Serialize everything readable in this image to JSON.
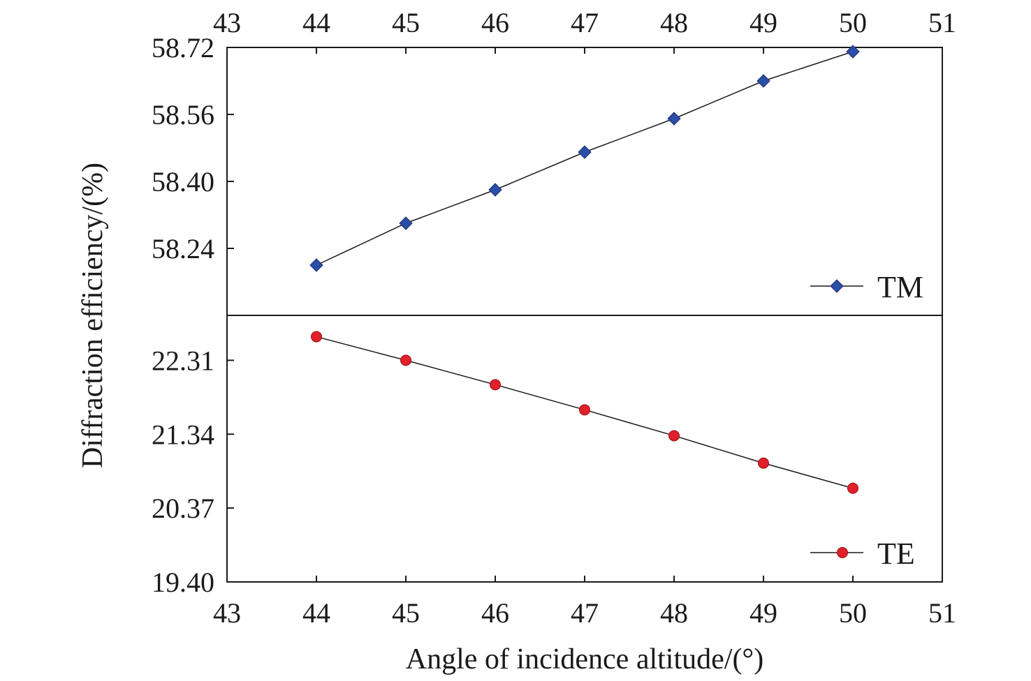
{
  "chart_data": {
    "type": "line",
    "xlabel": "Angle of incidence altitude/(°)",
    "ylabel": "Diffraction efficiency/(%)",
    "xlim": [
      43,
      51
    ],
    "x_ticks": [
      "43",
      "44",
      "45",
      "46",
      "47",
      "48",
      "49",
      "50",
      "51"
    ],
    "grid": false,
    "legend_position": "bottom-right of each panel",
    "panels": [
      {
        "name": "upper",
        "ylim": [
          58.08,
          58.72
        ],
        "y_ticks": [
          "58.24",
          "58.40",
          "58.56",
          "58.72"
        ],
        "series": [
          {
            "name": "TM",
            "marker": "diamond",
            "color": "#2a4fa8",
            "x": [
              44,
              45,
              46,
              47,
              48,
              49,
              50
            ],
            "y": [
              58.2,
              58.3,
              58.38,
              58.47,
              58.55,
              58.64,
              58.71
            ]
          }
        ]
      },
      {
        "name": "lower",
        "ylim": [
          19.4,
          22.9
        ],
        "y_ticks": [
          "19.40",
          "20.37",
          "21.34",
          "22.31"
        ],
        "series": [
          {
            "name": "TE",
            "marker": "circle",
            "color": "#e0202a",
            "x": [
              44,
              45,
              46,
              47,
              48,
              49,
              50
            ],
            "y": [
              22.62,
              22.31,
              21.99,
              21.66,
              21.32,
              20.96,
              20.63
            ]
          }
        ]
      }
    ]
  }
}
